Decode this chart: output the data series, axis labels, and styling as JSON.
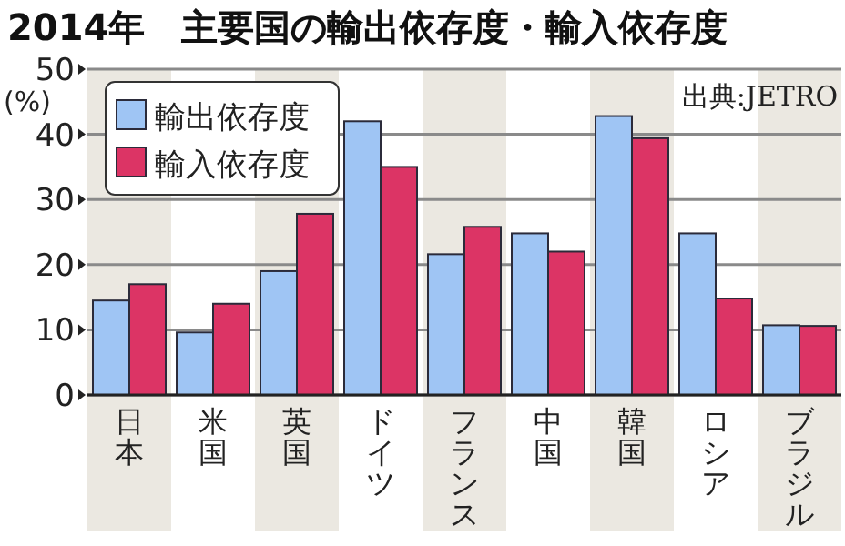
{
  "chart_data": {
    "type": "bar",
    "title": "2014年　主要国の輸出依存度・輸入依存度",
    "ylabel": "(%)",
    "categories": [
      "日本",
      "米国",
      "英国",
      "ドイツ",
      "フランス",
      "中国",
      "韓国",
      "ロシア",
      "ブラジル"
    ],
    "series": [
      {
        "name": "輸出依存度",
        "color": "#9fc5f4",
        "values": [
          14.5,
          9.6,
          19,
          42,
          21.6,
          24.8,
          42.8,
          24.8,
          10.7
        ]
      },
      {
        "name": "輸入依存度",
        "color": "#dc3465",
        "values": [
          17,
          14,
          27.8,
          35,
          25.8,
          22,
          39.4,
          14.8,
          10.6
        ]
      }
    ],
    "ylim": [
      0,
      50
    ],
    "yticks": [
      0,
      10,
      20,
      30,
      40,
      50
    ],
    "grid": "y",
    "legend": "top left",
    "annotations": [
      "出典:JETRO"
    ]
  }
}
